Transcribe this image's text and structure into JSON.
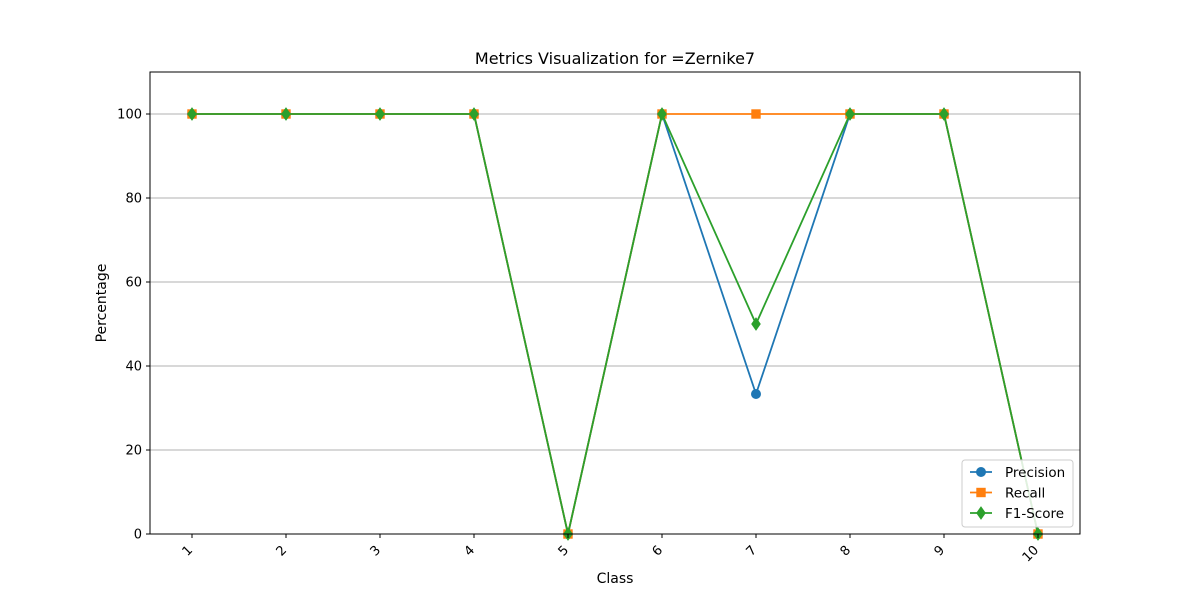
{
  "chart_data": {
    "type": "line",
    "title": "Metrics Visualization for =Zernike7",
    "xlabel": "Class",
    "ylabel": "Percentage",
    "categories": [
      "1",
      "2",
      "3",
      "4",
      "5",
      "6",
      "7",
      "8",
      "9",
      "10"
    ],
    "ylim": [
      0,
      110
    ],
    "yticks": [
      0,
      20,
      40,
      60,
      80,
      100
    ],
    "grid": "horizontal",
    "legend_position": "lower-right",
    "series": [
      {
        "name": "Precision",
        "color": "#1f77b4",
        "marker": "circle",
        "values": [
          100,
          100,
          100,
          100,
          0,
          100,
          33.33,
          100,
          100,
          0
        ]
      },
      {
        "name": "Recall",
        "color": "#ff7f0e",
        "marker": "square",
        "values": [
          100,
          100,
          100,
          100,
          0,
          100,
          100,
          100,
          100,
          0
        ]
      },
      {
        "name": "F1-Score",
        "color": "#2ca02c",
        "marker": "diamond",
        "values": [
          100,
          100,
          100,
          100,
          0,
          100,
          50,
          100,
          100,
          0
        ]
      }
    ]
  }
}
